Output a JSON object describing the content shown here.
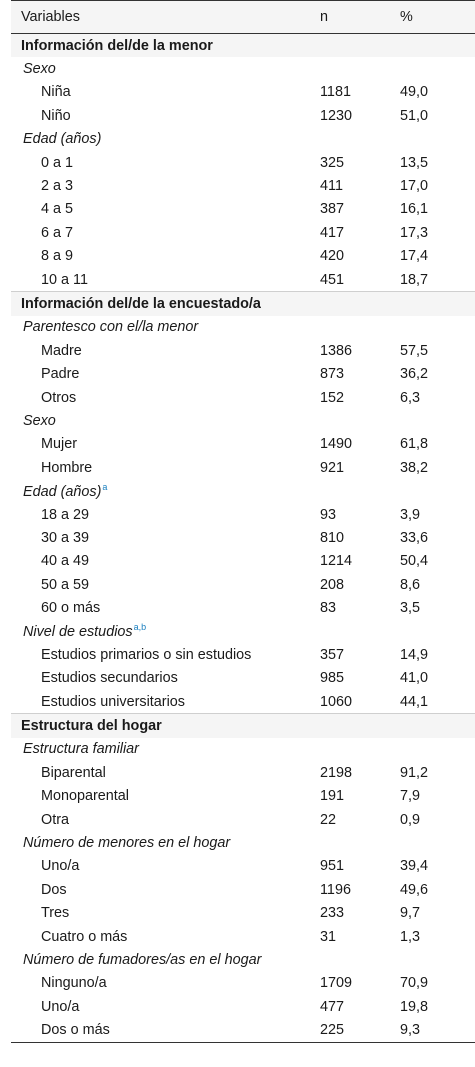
{
  "header": {
    "variables": "Variables",
    "n": "n",
    "pct": "%"
  },
  "sections": [
    {
      "title": "Información del/de la menor",
      "groups": [
        {
          "title": "Sexo",
          "sup": "",
          "rows": [
            {
              "label": "Niña",
              "n": "1181",
              "pct": "49,0"
            },
            {
              "label": "Niño",
              "n": "1230",
              "pct": "51,0"
            }
          ]
        },
        {
          "title": "Edad (años)",
          "sup": "",
          "rows": [
            {
              "label": "0 a 1",
              "n": "325",
              "pct": "13,5"
            },
            {
              "label": "2 a 3",
              "n": "411",
              "pct": "17,0"
            },
            {
              "label": "4 a 5",
              "n": "387",
              "pct": "16,1"
            },
            {
              "label": "6 a 7",
              "n": "417",
              "pct": "17,3"
            },
            {
              "label": "8 a 9",
              "n": "420",
              "pct": "17,4"
            },
            {
              "label": "10 a 11",
              "n": "451",
              "pct": "18,7"
            }
          ]
        }
      ]
    },
    {
      "title": "Información del/de la encuestado/a",
      "groups": [
        {
          "title": "Parentesco con el/la menor",
          "sup": "",
          "rows": [
            {
              "label": "Madre",
              "n": "1386",
              "pct": "57,5"
            },
            {
              "label": "Padre",
              "n": "873",
              "pct": "36,2"
            },
            {
              "label": "Otros",
              "n": "152",
              "pct": "6,3"
            }
          ]
        },
        {
          "title": "Sexo",
          "sup": "",
          "rows": [
            {
              "label": "Mujer",
              "n": "1490",
              "pct": "61,8"
            },
            {
              "label": "Hombre",
              "n": "921",
              "pct": "38,2"
            }
          ]
        },
        {
          "title": "Edad (años)",
          "sup": "a",
          "rows": [
            {
              "label": "18 a 29",
              "n": "93",
              "pct": "3,9"
            },
            {
              "label": "30 a 39",
              "n": "810",
              "pct": "33,6"
            },
            {
              "label": "40 a 49",
              "n": "1214",
              "pct": "50,4"
            },
            {
              "label": "50 a 59",
              "n": "208",
              "pct": "8,6"
            },
            {
              "label": "60 o más",
              "n": "83",
              "pct": "3,5"
            }
          ]
        },
        {
          "title": "Nivel de estudios",
          "sup": "a,b",
          "rows": [
            {
              "label": "Estudios primarios o sin estudios",
              "n": "357",
              "pct": "14,9"
            },
            {
              "label": "Estudios secundarios",
              "n": "985",
              "pct": "41,0"
            },
            {
              "label": "Estudios universitarios",
              "n": "1060",
              "pct": "44,1"
            }
          ]
        }
      ]
    },
    {
      "title": "Estructura del hogar",
      "groups": [
        {
          "title": "Estructura familiar",
          "sup": "",
          "rows": [
            {
              "label": "Biparental",
              "n": "2198",
              "pct": "91,2"
            },
            {
              "label": "Monoparental",
              "n": "191",
              "pct": "7,9"
            },
            {
              "label": "Otra",
              "n": "22",
              "pct": "0,9"
            }
          ]
        },
        {
          "title": "Número de menores en el hogar",
          "sup": "",
          "rows": [
            {
              "label": "Uno/a",
              "n": "951",
              "pct": "39,4"
            },
            {
              "label": "Dos",
              "n": "1196",
              "pct": "49,6"
            },
            {
              "label": "Tres",
              "n": "233",
              "pct": "9,7"
            },
            {
              "label": "Cuatro o más",
              "n": "31",
              "pct": "1,3"
            }
          ]
        },
        {
          "title": "Número de fumadores/as en el hogar",
          "sup": "",
          "rows": [
            {
              "label": "Ninguno/a",
              "n": "1709",
              "pct": "70,9"
            },
            {
              "label": "Uno/a",
              "n": "477",
              "pct": "19,8"
            },
            {
              "label": "Dos o más",
              "n": "225",
              "pct": "9,3"
            }
          ]
        }
      ]
    }
  ]
}
